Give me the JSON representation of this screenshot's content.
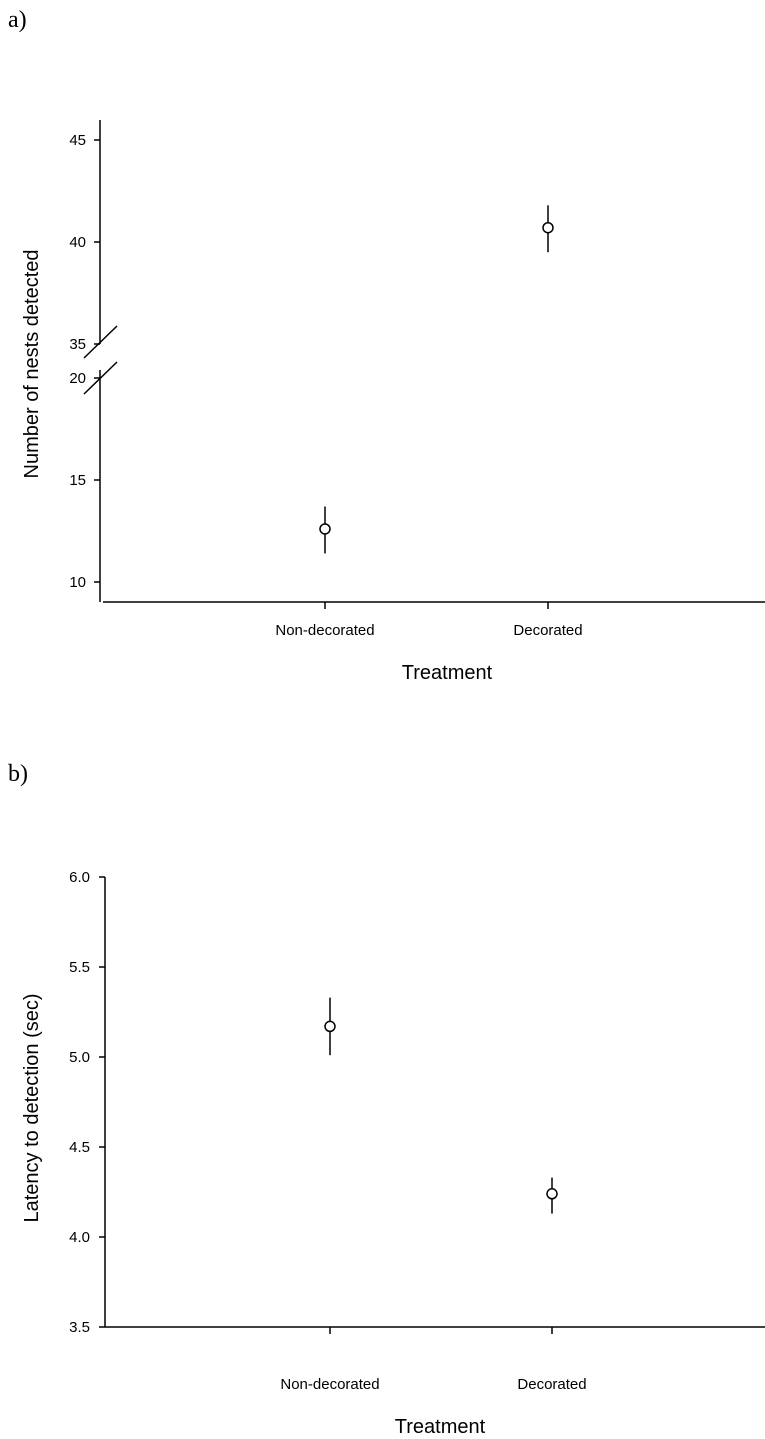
{
  "chart_data": [
    {
      "panel_label": "a)",
      "type": "scatter",
      "error_bars": true,
      "xlabel": "Treatment",
      "ylabel": "Number of nests detected",
      "categories": [
        "Non-decorated",
        "Decorated"
      ],
      "values": [
        12.6,
        40.7
      ],
      "err_low": [
        11.4,
        39.5
      ],
      "err_high": [
        13.7,
        41.8
      ],
      "axis_break": {
        "from": 20,
        "to": 35
      },
      "lower_segment": {
        "ylim": [
          9,
          20
        ],
        "ticks": [
          10,
          15,
          20
        ],
        "tick_labels": [
          "10",
          "15",
          "20"
        ]
      },
      "upper_segment": {
        "ylim": [
          35,
          46
        ],
        "ticks": [
          35,
          40,
          45
        ],
        "tick_labels": [
          "35",
          "40",
          "45"
        ]
      },
      "grid": false,
      "legend": "none"
    },
    {
      "panel_label": "b)",
      "type": "scatter",
      "error_bars": true,
      "xlabel": "Treatment",
      "ylabel": "Latency to detection (sec)",
      "categories": [
        "Non-decorated",
        "Decorated"
      ],
      "values": [
        5.17,
        4.24
      ],
      "err_low": [
        5.01,
        4.13
      ],
      "err_high": [
        5.33,
        4.33
      ],
      "ylim": [
        3.5,
        6.0
      ],
      "ticks": [
        3.5,
        4.0,
        4.5,
        5.0,
        5.5,
        6.0
      ],
      "tick_labels": [
        "3.5",
        "4.0",
        "4.5",
        "5.0",
        "5.5",
        "6.0"
      ],
      "grid": false,
      "legend": "none"
    }
  ]
}
